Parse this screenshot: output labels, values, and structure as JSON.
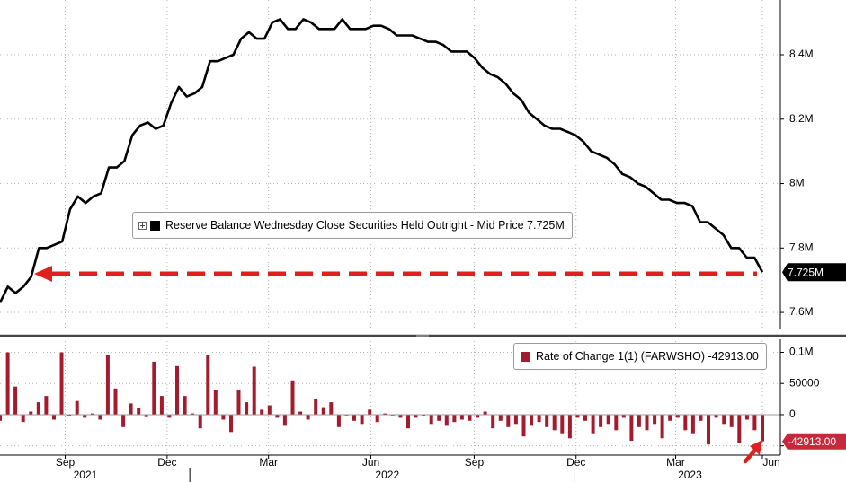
{
  "chart_data": [
    {
      "type": "line",
      "legend": {
        "label": "Reserve Balance Wednesday Close Securities Held Outright - Mid Price",
        "value": "7.725M"
      },
      "y_ticks": [
        "7.6M",
        "7.8M",
        "8M",
        "8.2M",
        "8.4M"
      ],
      "y_tick_values": [
        7.6,
        7.8,
        8.0,
        8.2,
        8.4
      ],
      "ylim": [
        7.55,
        8.57
      ],
      "last_value_label": "7.725M",
      "last_value": 7.725,
      "reference_line_value": 7.72,
      "grid": true,
      "colors": {
        "line": "#000000",
        "reference": "#e02020",
        "label_bg": "#000000",
        "label_text": "#ffffff"
      },
      "series": [
        {
          "values": [
            7.63,
            7.68,
            7.66,
            7.68,
            7.71,
            7.8,
            7.8,
            7.81,
            7.82,
            7.92,
            7.96,
            7.94,
            7.96,
            7.97,
            8.05,
            8.05,
            8.07,
            8.15,
            8.18,
            8.19,
            8.17,
            8.18,
            8.25,
            8.3,
            8.27,
            8.28,
            8.3,
            8.38,
            8.38,
            8.39,
            8.4,
            8.45,
            8.47,
            8.45,
            8.45,
            8.5,
            8.51,
            8.48,
            8.48,
            8.51,
            8.5,
            8.48,
            8.48,
            8.48,
            8.51,
            8.48,
            8.48,
            8.48,
            8.49,
            8.49,
            8.48,
            8.46,
            8.46,
            8.46,
            8.45,
            8.44,
            8.44,
            8.43,
            8.41,
            8.41,
            8.41,
            8.39,
            8.36,
            8.34,
            8.33,
            8.31,
            8.28,
            8.26,
            8.22,
            8.2,
            8.18,
            8.17,
            8.17,
            8.16,
            8.15,
            8.13,
            8.1,
            8.09,
            8.08,
            8.06,
            8.03,
            8.02,
            8.0,
            7.99,
            7.97,
            7.95,
            7.95,
            7.94,
            7.94,
            7.93,
            7.88,
            7.88,
            7.86,
            7.84,
            7.8,
            7.8,
            7.77,
            7.77,
            7.725
          ]
        }
      ]
    },
    {
      "type": "bar",
      "legend": {
        "label": "Rate of Change 1(1) (FARWSHO)",
        "value": "-42913.00"
      },
      "y_ticks": [
        "0.1M",
        "50000",
        "0",
        "-50000"
      ],
      "y_tick_values": [
        100000,
        50000,
        0,
        -50000
      ],
      "ylim": [
        -62000,
        118000
      ],
      "last_value_label": "-42913.00",
      "last_value": -42913,
      "grid": true,
      "colors": {
        "bar": "#a31c2e",
        "label_bg": "#c8283c",
        "label_text": "#ffffff",
        "arrow": "#e02020"
      },
      "series": [
        {
          "values": [
            -10000,
            100000,
            45000,
            -12000,
            5000,
            20000,
            30000,
            -8000,
            100000,
            -3000,
            22000,
            -5000,
            2000,
            -8000,
            96000,
            42000,
            -20000,
            18000,
            10000,
            -4000,
            85000,
            30000,
            -5000,
            78000,
            30000,
            2000,
            -22000,
            95000,
            40000,
            -8000,
            -28000,
            40000,
            20000,
            77000,
            8000,
            15000,
            -5000,
            -18000,
            55000,
            5000,
            -8000,
            25000,
            12000,
            20000,
            -20000,
            0,
            -10000,
            -15000,
            8000,
            -12000,
            2000,
            0,
            -5000,
            -22000,
            -5000,
            -2000,
            -15000,
            -10000,
            -18000,
            -12000,
            -8000,
            -10000,
            -5000,
            5000,
            -22000,
            -10000,
            -20000,
            -15000,
            -35000,
            -18000,
            -12000,
            -20000,
            -25000,
            -30000,
            -38000,
            -5000,
            -10000,
            -30000,
            -20000,
            -15000,
            -25000,
            -5000,
            -42000,
            -20000,
            -25000,
            -15000,
            -38000,
            -10000,
            -5000,
            -25000,
            -30000,
            -10000,
            -48000,
            -5000,
            -15000,
            -20000,
            -45000,
            -8000,
            -25000,
            -42913
          ]
        }
      ]
    }
  ],
  "x_axis": {
    "months": [
      {
        "label": "Sep",
        "t": 0.0855
      },
      {
        "label": "Dec",
        "t": 0.2192
      },
      {
        "label": "Mar",
        "t": 0.3522
      },
      {
        "label": "Jun",
        "t": 0.4865
      },
      {
        "label": "Sep",
        "t": 0.622
      },
      {
        "label": "Dec",
        "t": 0.7556
      },
      {
        "label": "Mar",
        "t": 0.8862
      },
      {
        "label": "Jun",
        "t": 1.0
      }
    ],
    "years": [
      {
        "label": "2021",
        "t": 0.112
      },
      {
        "label": "2022",
        "t": 0.508
      },
      {
        "label": "2023",
        "t": 0.905
      }
    ],
    "year_dividers": [
      0.249,
      0.753
    ]
  }
}
